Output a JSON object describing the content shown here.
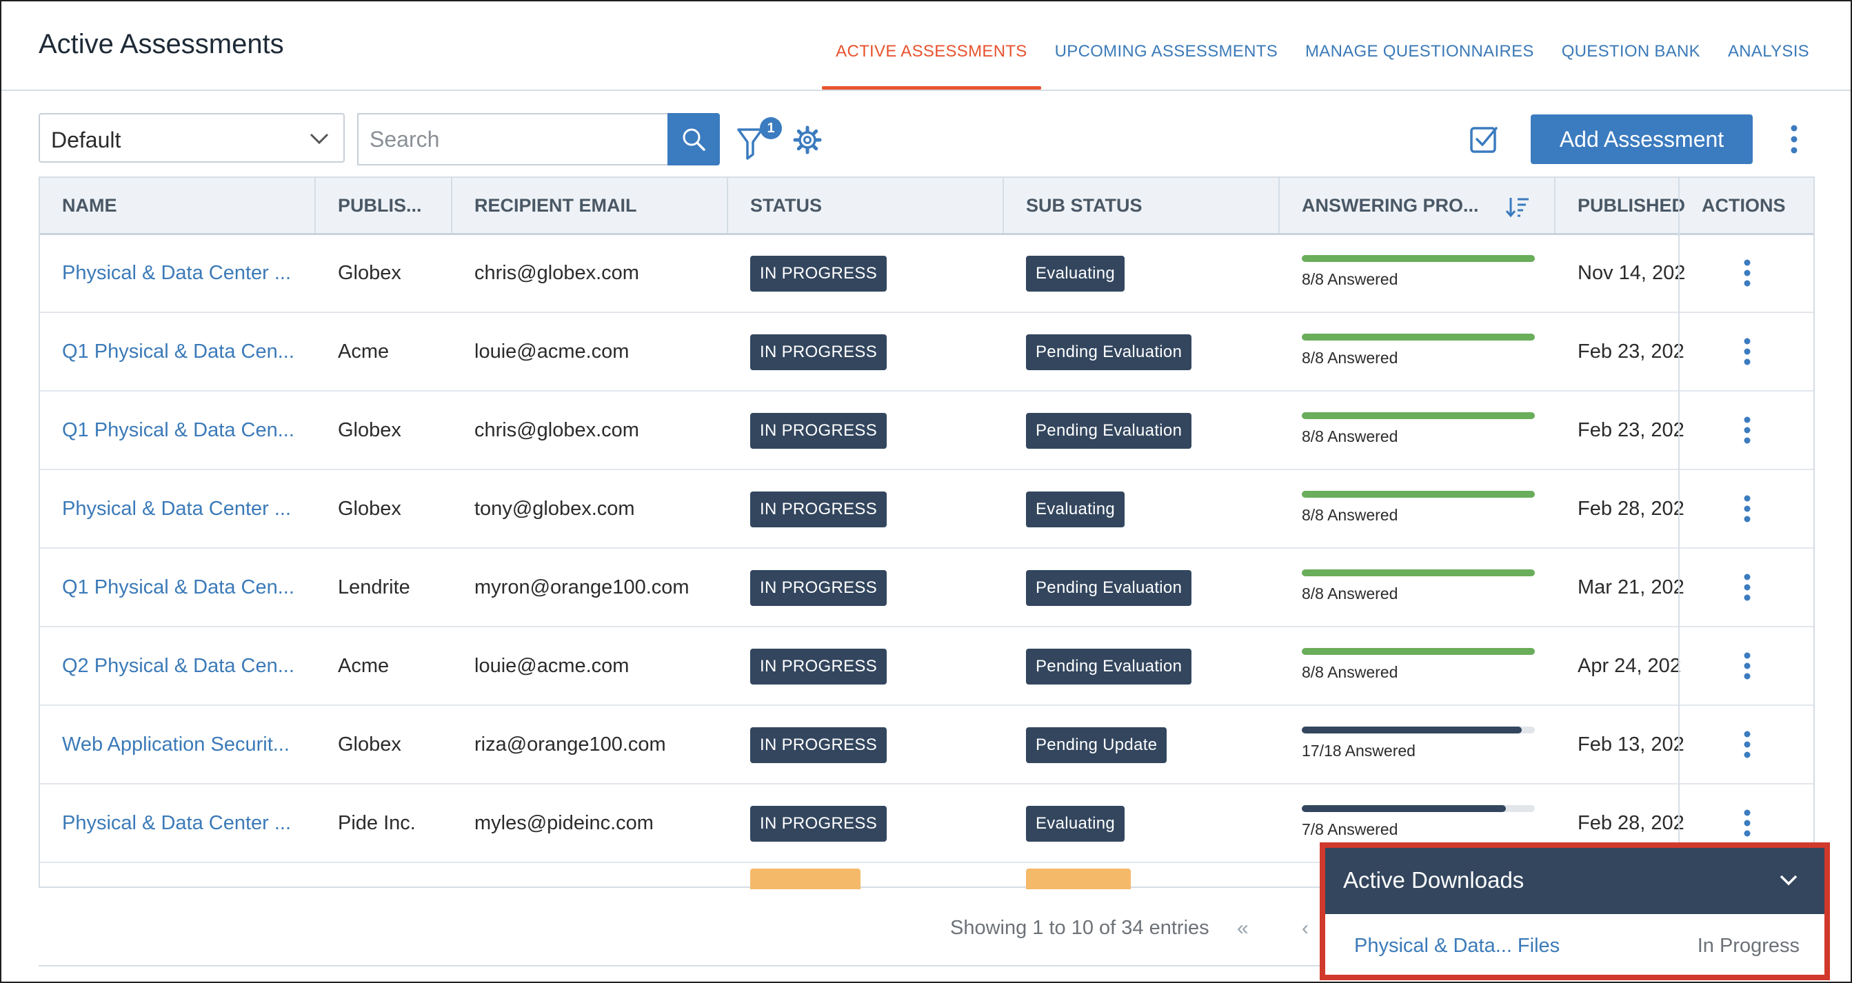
{
  "page_title": "Active Assessments",
  "nav_tabs": [
    {
      "label": "ACTIVE ASSESSMENTS",
      "active": true
    },
    {
      "label": "UPCOMING ASSESSMENTS",
      "active": false
    },
    {
      "label": "MANAGE QUESTIONNAIRES",
      "active": false
    },
    {
      "label": "QUESTION BANK",
      "active": false
    },
    {
      "label": "ANALYSIS",
      "active": false
    }
  ],
  "toolbar": {
    "view_select_value": "Default",
    "search_placeholder": "Search",
    "filter_count": "1",
    "add_button_label": "Add Assessment"
  },
  "table": {
    "columns": [
      "NAME",
      "PUBLIS...",
      "RECIPIENT EMAIL",
      "STATUS",
      "SUB STATUS",
      "ANSWERING PRO...",
      "PUBLISHED",
      "ACTIONS"
    ],
    "rows": [
      {
        "name": "Physical & Data Center ...",
        "publisher": "Globex",
        "email": "chris@globex.com",
        "status": "IN PROGRESS",
        "sub_status": "Evaluating",
        "progress_label": "8/8 Answered",
        "progress": 1.0,
        "published": "Nov 14, 202"
      },
      {
        "name": "Q1 Physical & Data Cen...",
        "publisher": "Acme",
        "email": "louie@acme.com",
        "status": "IN PROGRESS",
        "sub_status": "Pending Evaluation",
        "progress_label": "8/8 Answered",
        "progress": 1.0,
        "published": "Feb 23, 202"
      },
      {
        "name": "Q1 Physical & Data Cen...",
        "publisher": "Globex",
        "email": "chris@globex.com",
        "status": "IN PROGRESS",
        "sub_status": "Pending Evaluation",
        "progress_label": "8/8 Answered",
        "progress": 1.0,
        "published": "Feb 23, 202"
      },
      {
        "name": "Physical & Data Center ...",
        "publisher": "Globex",
        "email": "tony@globex.com",
        "status": "IN PROGRESS",
        "sub_status": "Evaluating",
        "progress_label": "8/8 Answered",
        "progress": 1.0,
        "published": "Feb 28, 202"
      },
      {
        "name": "Q1 Physical & Data Cen...",
        "publisher": "Lendrite",
        "email": "myron@orange100.com",
        "status": "IN PROGRESS",
        "sub_status": "Pending Evaluation",
        "progress_label": "8/8 Answered",
        "progress": 1.0,
        "published": "Mar 21, 202"
      },
      {
        "name": "Q2 Physical & Data Cen...",
        "publisher": "Acme",
        "email": "louie@acme.com",
        "status": "IN PROGRESS",
        "sub_status": "Pending Evaluation",
        "progress_label": "8/8 Answered",
        "progress": 1.0,
        "published": "Apr 24, 202"
      },
      {
        "name": "Web Application Securit...",
        "publisher": "Globex",
        "email": "riza@orange100.com",
        "status": "IN PROGRESS",
        "sub_status": "Pending Update",
        "progress_label": "17/18 Answered",
        "progress": 0.944,
        "published": "Feb 13, 202"
      },
      {
        "name": "Physical & Data Center ...",
        "publisher": "Pide Inc.",
        "email": "myles@pideinc.com",
        "status": "IN PROGRESS",
        "sub_status": "Evaluating",
        "progress_label": "7/8 Answered",
        "progress": 0.875,
        "published": "Feb 28, 202"
      }
    ]
  },
  "pagination": {
    "showing_text": "Showing 1 to 10 of 34 entries",
    "first_label": "«",
    "prev_label": "‹"
  },
  "downloads": {
    "title": "Active Downloads",
    "items": [
      {
        "file": "Physical & Data... Files",
        "status": "In Progress"
      }
    ]
  },
  "colors": {
    "accent": "#3b7bbf",
    "active_tab": "#e8532f",
    "link": "#3b7ab8",
    "badge_bg": "#33465e",
    "progress_complete": "#6aad5a",
    "progress_partial": "#33465e",
    "downloads_border": "#d0392b"
  }
}
